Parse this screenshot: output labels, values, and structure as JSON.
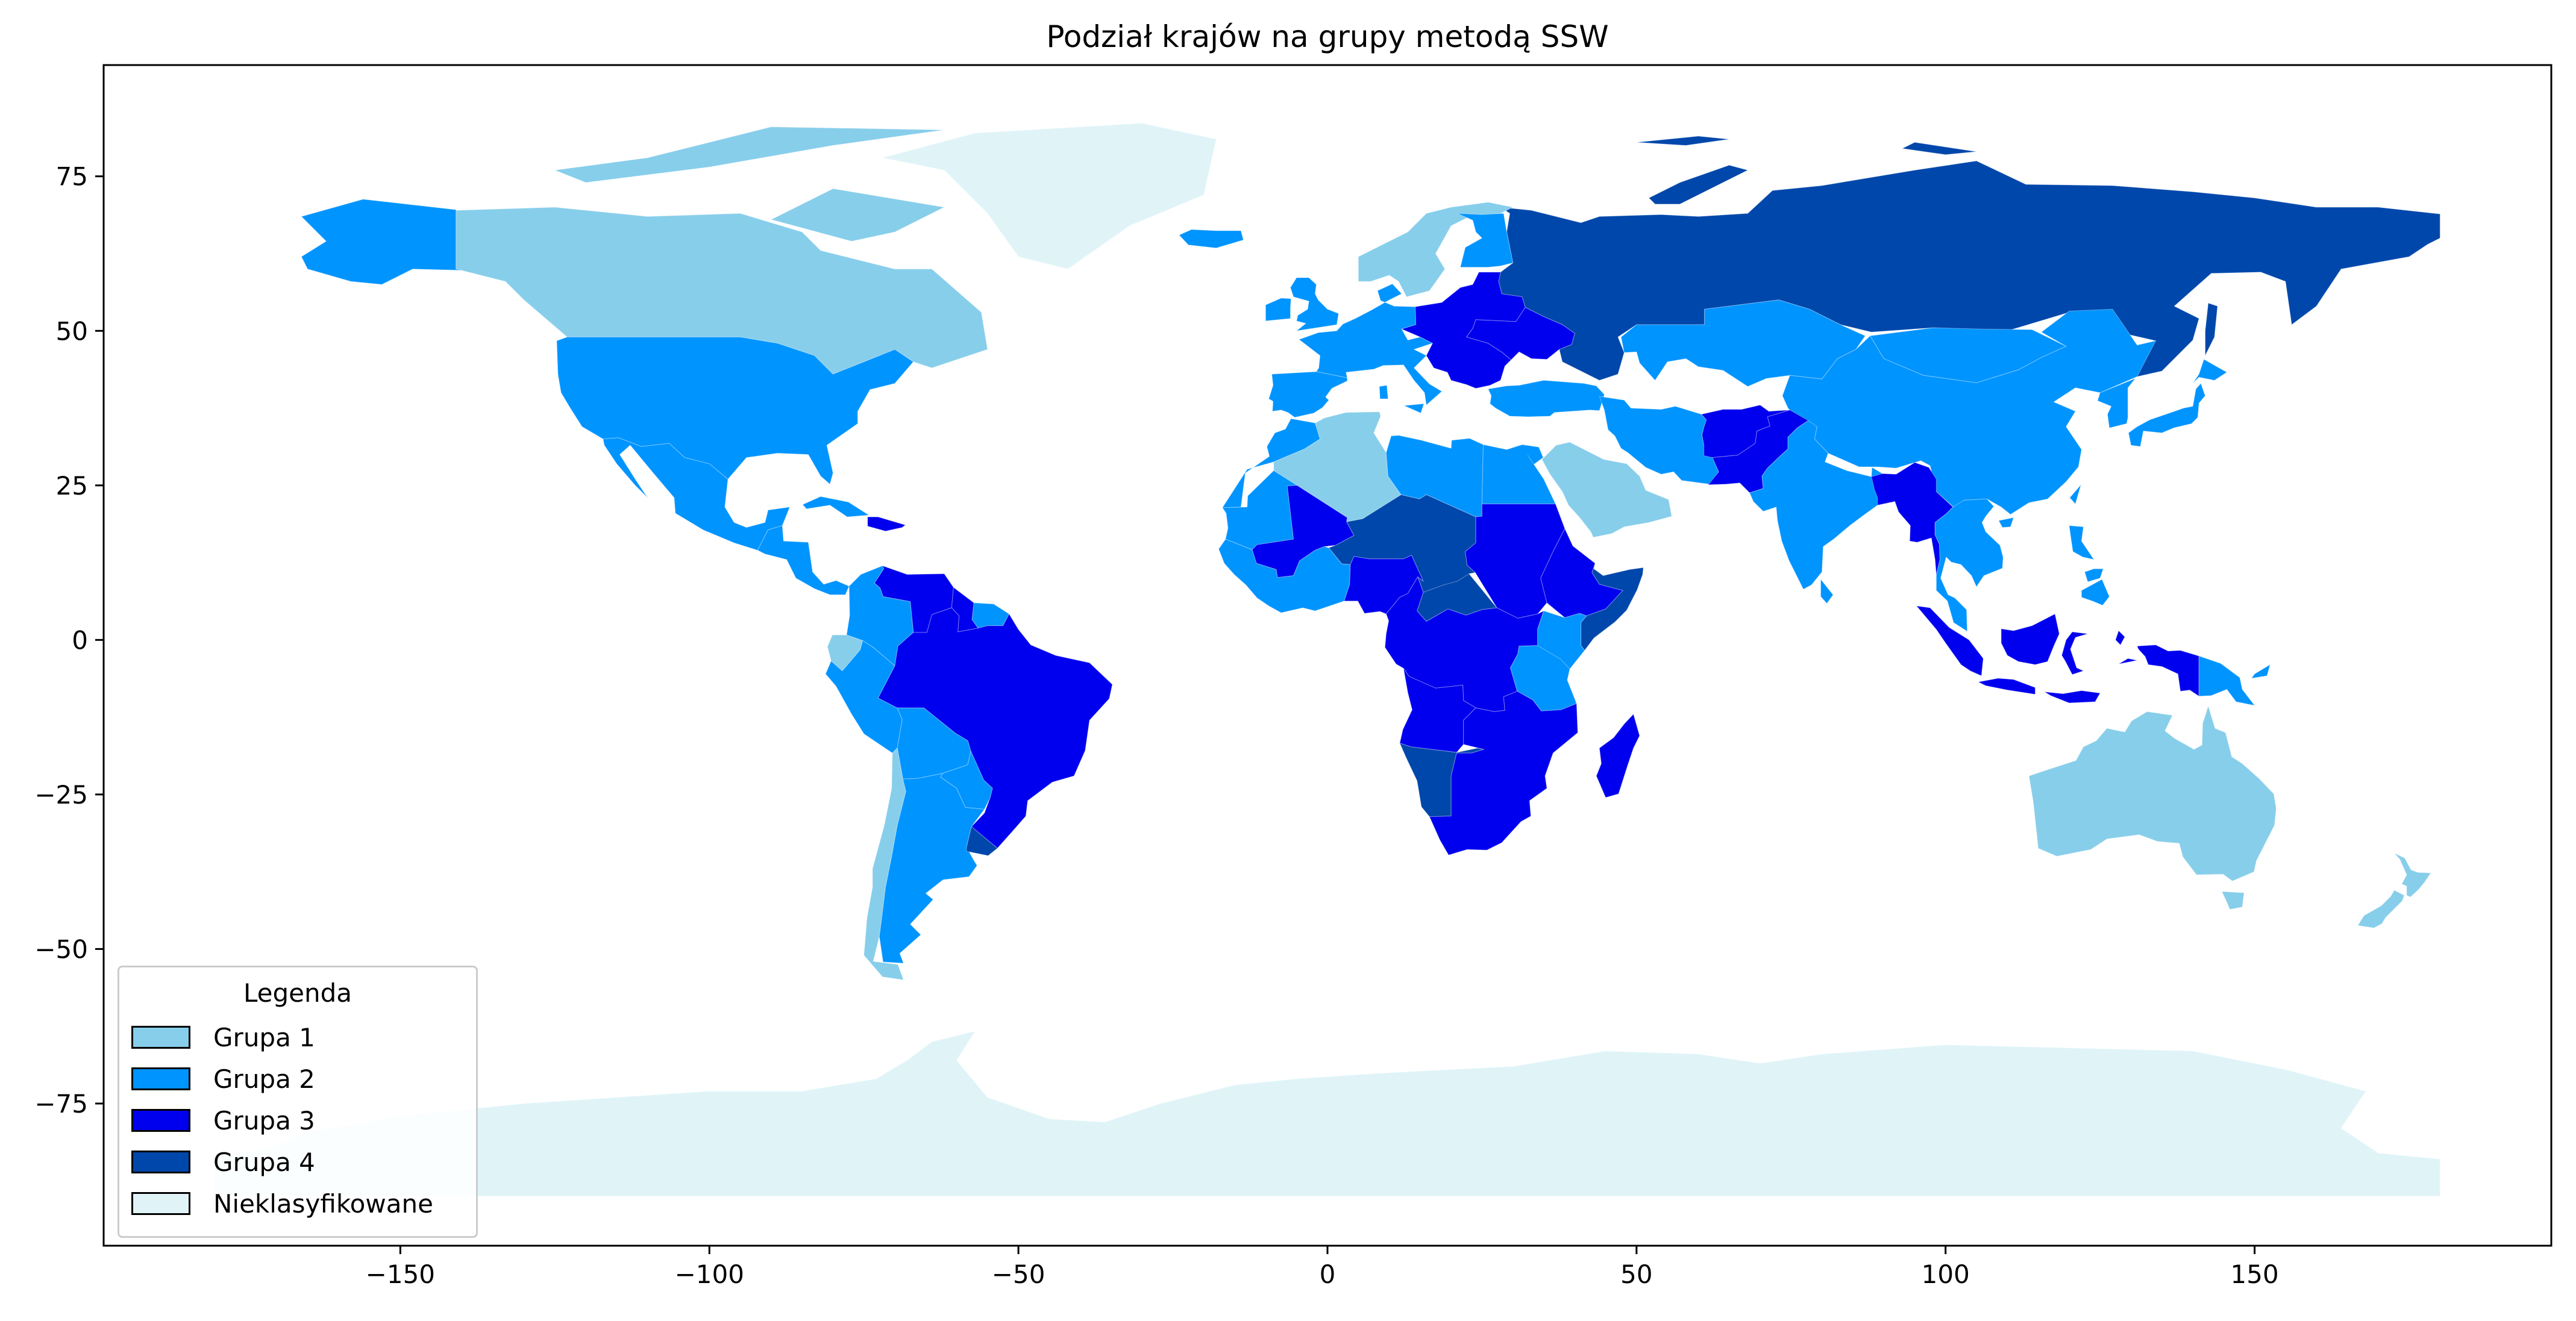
{
  "chart_data": {
    "type": "choropleth",
    "title": "Podział krajów na grupy metodą SSW",
    "xlabel": "",
    "ylabel": "",
    "xlim": [
      -198,
      198
    ],
    "ylim": [
      -98,
      93
    ],
    "x_ticks": [
      -150,
      -100,
      -50,
      0,
      50,
      100,
      150
    ],
    "y_ticks": [
      75,
      50,
      25,
      0,
      -25,
      -50,
      -75
    ],
    "x_tick_labels": [
      "−150",
      "−100",
      "−50",
      "0",
      "50",
      "100",
      "150"
    ],
    "y_tick_labels": [
      "75",
      "50",
      "25",
      "0",
      "−25",
      "−50",
      "−75"
    ],
    "grid": false,
    "legend_position": "lower-left",
    "legend": {
      "title": "Legenda",
      "entries": [
        {
          "label": "Grupa 1",
          "color": "#87ceeb"
        },
        {
          "label": "Grupa 2",
          "color": "#0094ff"
        },
        {
          "label": "Grupa 3",
          "color": "#0000ee"
        },
        {
          "label": "Grupa 4",
          "color": "#0047ab"
        },
        {
          "label": "Nieklasyfikowane",
          "color": "#e0f4f8"
        }
      ]
    },
    "regions": [
      {
        "name": "Canada",
        "group": "Grupa 1"
      },
      {
        "name": "Greenland",
        "group": "Nieklasyfikowane"
      },
      {
        "name": "United States",
        "group": "Grupa 2"
      },
      {
        "name": "Alaska",
        "group": "Grupa 2"
      },
      {
        "name": "Mexico",
        "group": "Grupa 2"
      },
      {
        "name": "Central America",
        "group": "Grupa 2"
      },
      {
        "name": "Cuba",
        "group": "Grupa 2"
      },
      {
        "name": "Hispaniola",
        "group": "Grupa 3"
      },
      {
        "name": "Venezuela",
        "group": "Grupa 3"
      },
      {
        "name": "Colombia",
        "group": "Grupa 2"
      },
      {
        "name": "Guyana",
        "group": "Grupa 3"
      },
      {
        "name": "Suriname",
        "group": "Grupa 2"
      },
      {
        "name": "Ecuador",
        "group": "Grupa 1"
      },
      {
        "name": "Peru",
        "group": "Grupa 2"
      },
      {
        "name": "Brazil",
        "group": "Grupa 3"
      },
      {
        "name": "Bolivia",
        "group": "Grupa 2"
      },
      {
        "name": "Paraguay",
        "group": "Grupa 2"
      },
      {
        "name": "Chile",
        "group": "Grupa 1"
      },
      {
        "name": "Argentina",
        "group": "Grupa 2"
      },
      {
        "name": "Uruguay",
        "group": "Grupa 4"
      },
      {
        "name": "Antarctica",
        "group": "Nieklasyfikowane"
      },
      {
        "name": "Russia",
        "group": "Grupa 4"
      },
      {
        "name": "Scandinavia",
        "group": "Grupa 1"
      },
      {
        "name": "Finland",
        "group": "Grupa 2"
      },
      {
        "name": "Iceland",
        "group": "Grupa 2"
      },
      {
        "name": "United Kingdom",
        "group": "Grupa 2"
      },
      {
        "name": "Ireland",
        "group": "Grupa 2"
      },
      {
        "name": "Western Europe",
        "group": "Grupa 2"
      },
      {
        "name": "Iberia",
        "group": "Grupa 2"
      },
      {
        "name": "Eastern Europe",
        "group": "Grupa 3"
      },
      {
        "name": "Ukraine",
        "group": "Grupa 3"
      },
      {
        "name": "Turkey",
        "group": "Grupa 2"
      },
      {
        "name": "Kazakhstan",
        "group": "Grupa 2"
      },
      {
        "name": "Mongolia",
        "group": "Grupa 2"
      },
      {
        "name": "China",
        "group": "Grupa 2"
      },
      {
        "name": "Korea",
        "group": "Grupa 2"
      },
      {
        "name": "Japan",
        "group": "Grupa 2"
      },
      {
        "name": "Saudi Arabia",
        "group": "Grupa 1"
      },
      {
        "name": "Iran",
        "group": "Grupa 2"
      },
      {
        "name": "Afghanistan",
        "group": "Grupa 3"
      },
      {
        "name": "Pakistan",
        "group": "Grupa 3"
      },
      {
        "name": "India",
        "group": "Grupa 2"
      },
      {
        "name": "Bangladesh and Myanmar",
        "group": "Grupa 3"
      },
      {
        "name": "Indochina",
        "group": "Grupa 2"
      },
      {
        "name": "Philippines",
        "group": "Grupa 2"
      },
      {
        "name": "Indonesia",
        "group": "Grupa 3"
      },
      {
        "name": "Papua New Guinea",
        "group": "Grupa 2"
      },
      {
        "name": "Australia",
        "group": "Grupa 1"
      },
      {
        "name": "New Zealand",
        "group": "Grupa 1"
      },
      {
        "name": "Morocco",
        "group": "Grupa 2"
      },
      {
        "name": "Algeria",
        "group": "Grupa 1"
      },
      {
        "name": "Libya",
        "group": "Grupa 2"
      },
      {
        "name": "Egypt",
        "group": "Grupa 2"
      },
      {
        "name": "Mauritania",
        "group": "Grupa 2"
      },
      {
        "name": "Mali",
        "group": "Grupa 3"
      },
      {
        "name": "Niger and Chad",
        "group": "Grupa 4"
      },
      {
        "name": "Sudan",
        "group": "Grupa 3"
      },
      {
        "name": "Ethiopia",
        "group": "Grupa 3"
      },
      {
        "name": "Somalia",
        "group": "Grupa 4"
      },
      {
        "name": "West Africa",
        "group": "Grupa 2"
      },
      {
        "name": "Nigeria",
        "group": "Grupa 3"
      },
      {
        "name": "Central Africa",
        "group": "Grupa 3"
      },
      {
        "name": "Tanzania",
        "group": "Grupa 2"
      },
      {
        "name": "Angola",
        "group": "Grupa 3"
      },
      {
        "name": "Namibia",
        "group": "Grupa 4"
      },
      {
        "name": "Southern Africa",
        "group": "Grupa 3"
      },
      {
        "name": "Madagascar",
        "group": "Grupa 3"
      }
    ]
  }
}
